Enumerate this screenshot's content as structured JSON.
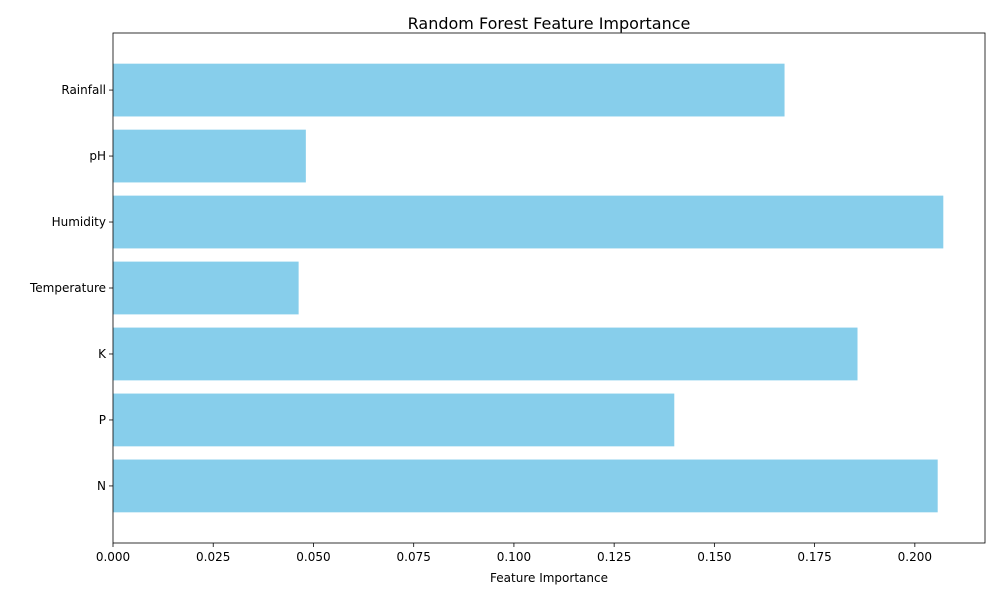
{
  "chart_data": {
    "type": "bar",
    "orientation": "horizontal",
    "title": "Random Forest Feature Importance",
    "xlabel": "Feature Importance",
    "ylabel": "",
    "categories": [
      "N",
      "P",
      "K",
      "Temperature",
      "Humidity",
      "pH",
      "Rainfall"
    ],
    "values": [
      0.2057,
      0.14,
      0.1857,
      0.0463,
      0.2071,
      0.0481,
      0.1675
    ],
    "xlim": [
      0,
      0.2175
    ],
    "xticks": [
      "0.000",
      "0.025",
      "0.050",
      "0.075",
      "0.100",
      "0.125",
      "0.150",
      "0.175",
      "0.200"
    ],
    "xtick_values": [
      0,
      0.025,
      0.05,
      0.075,
      0.1,
      0.125,
      0.15,
      0.175,
      0.2
    ],
    "grid": false,
    "bar_color": "#87CEEB"
  }
}
